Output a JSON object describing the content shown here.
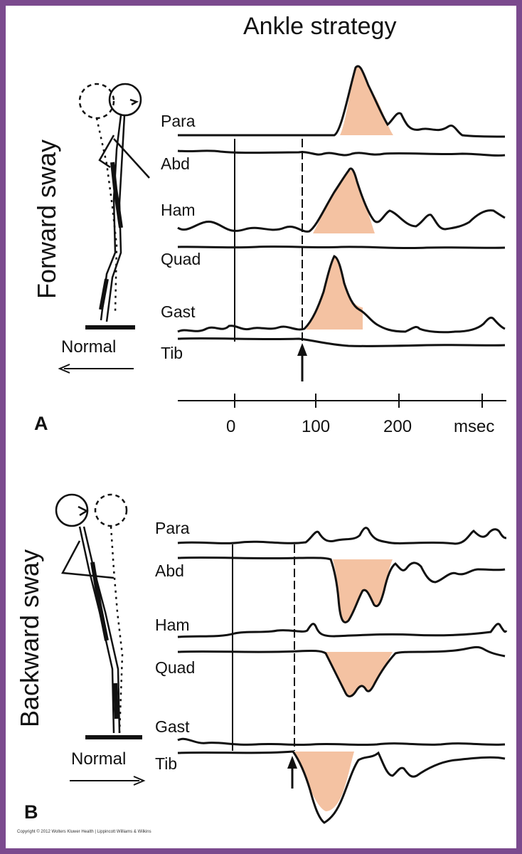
{
  "title": "Ankle strategy",
  "panel_a": {
    "letter": "A",
    "side_label": "Forward sway",
    "normal_label": "Normal",
    "muscles": [
      "Para",
      "Abd",
      "Ham",
      "Quad",
      "Gast",
      "Tib"
    ],
    "time_axis": {
      "ticks": [
        "0",
        "100",
        "200"
      ],
      "unit": "msec"
    }
  },
  "panel_b": {
    "letter": "B",
    "side_label": "Backward sway",
    "normal_label": "Normal",
    "muscles": [
      "Para",
      "Abd",
      "Ham",
      "Quad",
      "Gast",
      "Tib"
    ]
  },
  "copyright": "Copyright © 2012 Wolters Kluwer Health | Lippincott Williams & Wilkins",
  "colors": {
    "border": "#7b4a8e",
    "fill": "#f4c2a2",
    "trace": "#111111"
  }
}
